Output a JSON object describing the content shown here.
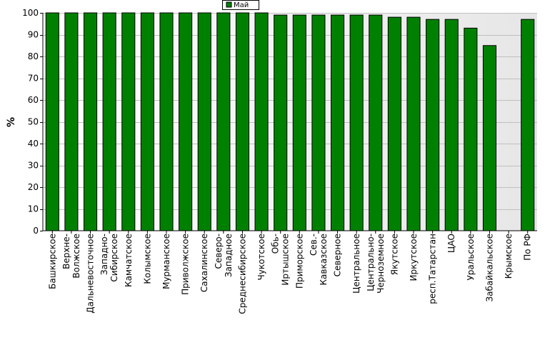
{
  "chart_data": {
    "type": "bar",
    "ylabel": "%",
    "ylim": [
      0,
      100
    ],
    "yticks": [
      0,
      10,
      20,
      30,
      40,
      50,
      60,
      70,
      80,
      90,
      100
    ],
    "grid": true,
    "legend_position": "top-center",
    "series": [
      {
        "name": "Май",
        "color": "#008000",
        "values": [
          100,
          100,
          100,
          100,
          100,
          100,
          100,
          100,
          100,
          100,
          100,
          100,
          99,
          99,
          99,
          99,
          99,
          99,
          98,
          98,
          97,
          97,
          93,
          85,
          null,
          97
        ]
      }
    ],
    "categories": [
      [
        "Башкирское"
      ],
      [
        "Верхне-",
        "Волжское"
      ],
      [
        "Дальневосточное"
      ],
      [
        "Западно-",
        "Сибирское"
      ],
      [
        "Камчатское"
      ],
      [
        "Колымское"
      ],
      [
        "Мурманское"
      ],
      [
        "Приволжское"
      ],
      [
        "Сахалинское"
      ],
      [
        "Северо-",
        "Западное"
      ],
      [
        "Среднесибирское"
      ],
      [
        "Чукотское"
      ],
      [
        "Обь-",
        "Иртышское"
      ],
      [
        "Приморское"
      ],
      [
        "Сев.-",
        "Кавказское"
      ],
      [
        "Северное"
      ],
      [
        "Центральное"
      ],
      [
        "Центрально-",
        "Черноземное"
      ],
      [
        "Якутское"
      ],
      [
        "Иркутское"
      ],
      [
        "респ.Татарстан"
      ],
      [
        "ЦАО"
      ],
      [
        "Уральское"
      ],
      [
        "Забайкальское"
      ],
      [
        "Крымское"
      ],
      [
        "По РФ"
      ]
    ]
  }
}
